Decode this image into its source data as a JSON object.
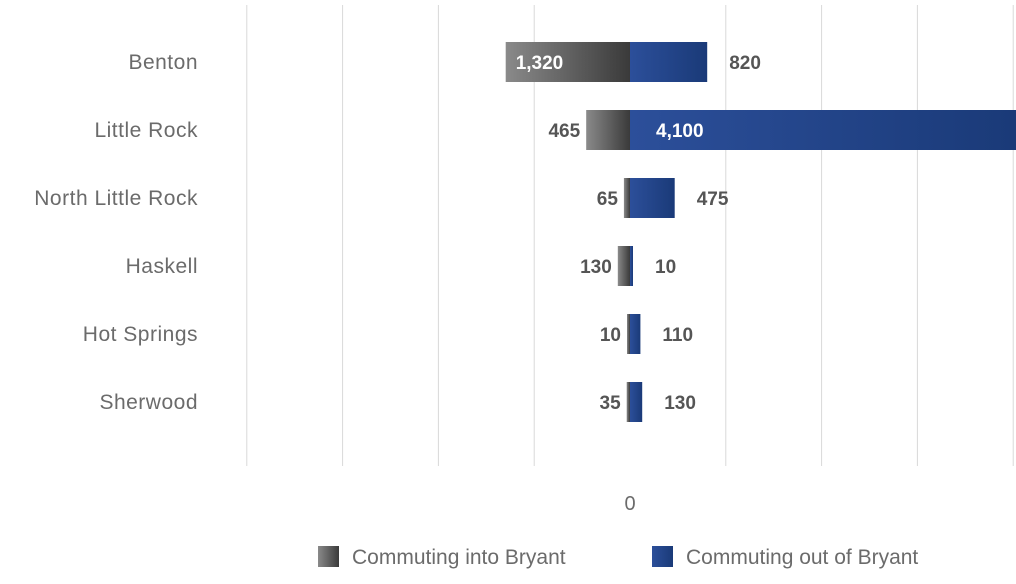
{
  "chart_data": {
    "type": "bar",
    "orientation": "horizontal",
    "stacking": "diverging",
    "categories": [
      "Benton",
      "Little Rock",
      "North Little Rock",
      "Haskell",
      "Hot Springs",
      "Sherwood"
    ],
    "series": [
      {
        "name": "Commuting into Bryant",
        "color": "#4d4d4d",
        "values": [
          1320,
          465,
          65,
          130,
          10,
          35
        ],
        "labels": [
          "1,320",
          "465",
          "65",
          "130",
          "10",
          "35"
        ]
      },
      {
        "name": "Commuting out of Bryant",
        "color": "#1f3f82",
        "values": [
          820,
          4100,
          475,
          10,
          110,
          130
        ],
        "labels": [
          "820",
          "4,100",
          "475",
          "10",
          "110",
          "130"
        ]
      }
    ],
    "x_tick_labels": [
      "0"
    ],
    "title": "",
    "xlabel": "",
    "ylabel": "",
    "grid": true,
    "legend_position": "bottom"
  }
}
